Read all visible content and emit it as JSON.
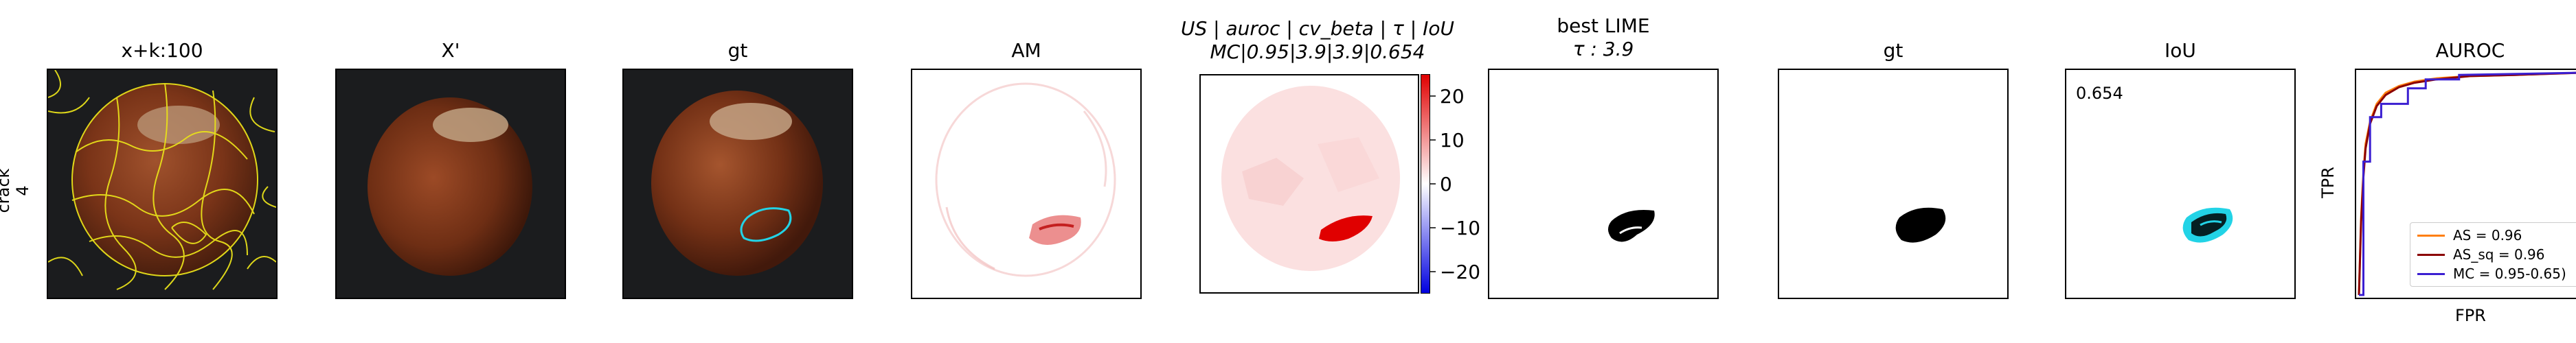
{
  "row_label": {
    "line1": "crack",
    "line2": "4"
  },
  "panels": [
    {
      "title": "x+k:100"
    },
    {
      "title": "X'"
    },
    {
      "title": "gt"
    },
    {
      "title": "AM"
    },
    {
      "title_line1": "US | auroc | cv_beta | τ | IoU",
      "title_line2": "MC|0.95|3.9|3.9|0.654"
    },
    {
      "title_line1": "best LIME",
      "title_line2": "τ : 3.9"
    },
    {
      "title": "gt"
    },
    {
      "title": "IoU",
      "annotation": "0.654"
    },
    {
      "title": "AUROC",
      "xlabel": "FPR",
      "ylabel": "TPR"
    }
  ],
  "colorbar": {
    "ticks": [
      "20",
      "10",
      "0",
      "−10",
      "−20"
    ],
    "tick_values": [
      20,
      10,
      0,
      -10,
      -20
    ],
    "vmin": -25,
    "vmax": 25
  },
  "colors": {
    "as": "#ff7f0e",
    "as_sq": "#8b0000",
    "mc": "#3b1fd1",
    "contour_cyan": "#22d3e6",
    "lime_yellow": "#e8e01a"
  },
  "chart_data": {
    "type": "line",
    "title": "AUROC",
    "xlabel": "FPR",
    "ylabel": "TPR",
    "xlim": [
      0,
      1
    ],
    "ylim": [
      0,
      1
    ],
    "legend": "bottom-right",
    "series": [
      {
        "name": "AS = 0.96",
        "x": [
          0,
          0.01,
          0.02,
          0.03,
          0.05,
          0.08,
          0.12,
          0.18,
          0.25,
          0.35,
          0.5,
          0.7,
          1.0
        ],
        "y": [
          0,
          0.35,
          0.55,
          0.68,
          0.78,
          0.86,
          0.91,
          0.94,
          0.96,
          0.975,
          0.985,
          0.99,
          1.0
        ]
      },
      {
        "name": "AS_sq = 0.96",
        "x": [
          0,
          0.01,
          0.02,
          0.03,
          0.05,
          0.08,
          0.12,
          0.18,
          0.25,
          0.35,
          0.5,
          0.7,
          1.0
        ],
        "y": [
          0,
          0.33,
          0.53,
          0.66,
          0.77,
          0.85,
          0.9,
          0.935,
          0.955,
          0.97,
          0.985,
          0.99,
          1.0
        ]
      },
      {
        "name": "MC = 0.95-0.65)",
        "x": [
          0,
          0.02,
          0.02,
          0.05,
          0.05,
          0.1,
          0.1,
          0.22,
          0.22,
          0.3,
          0.3,
          0.45,
          0.45,
          1.0
        ],
        "y": [
          0,
          0,
          0.6,
          0.6,
          0.8,
          0.8,
          0.86,
          0.86,
          0.93,
          0.93,
          0.97,
          0.97,
          0.99,
          1.0
        ]
      }
    ]
  }
}
